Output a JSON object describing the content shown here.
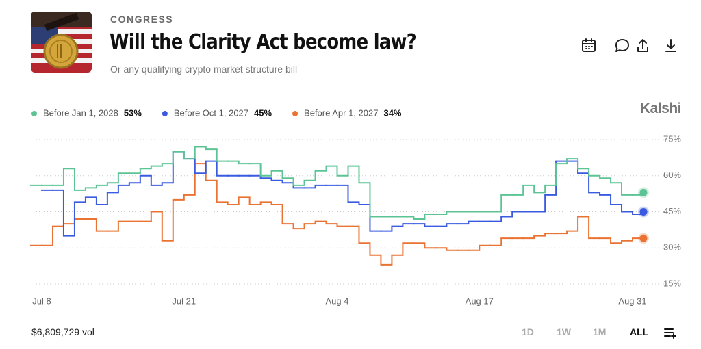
{
  "header": {
    "category": "CONGRESS",
    "title": "Will the Clarity Act become law?",
    "subtitle": "Or any qualifying crypto market structure bill",
    "brand": "Kalshi"
  },
  "chart_data": {
    "type": "step-line",
    "categories": [
      null,
      "Jul 8",
      null,
      null,
      null,
      null,
      null,
      null,
      null,
      null,
      null,
      null,
      null,
      null,
      "Jul 21",
      null,
      null,
      null,
      null,
      null,
      null,
      null,
      null,
      null,
      null,
      null,
      null,
      null,
      "Aug 4",
      null,
      null,
      null,
      null,
      null,
      null,
      null,
      null,
      null,
      null,
      null,
      null,
      "Aug 17",
      null,
      null,
      null,
      null,
      null,
      null,
      null,
      null,
      null,
      null,
      null,
      null,
      null,
      "Aug 31",
      null
    ],
    "series": [
      {
        "name": "Before Jan 1, 2028",
        "legend_value": "53%",
        "color": "#5cc494",
        "values": [
          56,
          56,
          56,
          63,
          54,
          55,
          56,
          57,
          61,
          61,
          63,
          64,
          65,
          70,
          67,
          72,
          71,
          66,
          66,
          65,
          65,
          60,
          62,
          59,
          56,
          58,
          62,
          64,
          60,
          64,
          57,
          43,
          43,
          43,
          43,
          42,
          44,
          44,
          45,
          45,
          45,
          45,
          45,
          52,
          52,
          56,
          53,
          56,
          65,
          67,
          63,
          60,
          59,
          57,
          52,
          52,
          53
        ]
      },
      {
        "name": "Before Oct 1, 2027",
        "legend_value": "45%",
        "color": "#3a5be0",
        "values": [
          null,
          54,
          54,
          35,
          49,
          51,
          48,
          53,
          56,
          57,
          60,
          56,
          57,
          70,
          67,
          61,
          66,
          60,
          60,
          60,
          60,
          59,
          58,
          57,
          55,
          55,
          56,
          56,
          56,
          49,
          48,
          37,
          37,
          39,
          40,
          40,
          39,
          39,
          40,
          40,
          41,
          41,
          41,
          43,
          45,
          45,
          45,
          52,
          66,
          66,
          61,
          53,
          52,
          48,
          45,
          44,
          45
        ]
      },
      {
        "name": "Before Apr 1, 2027",
        "legend_value": "34%",
        "color": "#ea7333",
        "values": [
          31,
          31,
          39,
          40,
          42,
          42,
          37,
          37,
          41,
          41,
          41,
          45,
          33,
          50,
          52,
          65,
          58,
          49,
          48,
          51,
          48,
          49,
          48,
          40,
          38,
          40,
          41,
          40,
          39,
          39,
          32,
          27,
          23,
          27,
          32,
          32,
          30,
          30,
          29,
          29,
          29,
          31,
          31,
          34,
          34,
          34,
          35,
          36,
          36,
          37,
          43,
          34,
          34,
          32,
          33,
          34,
          34
        ]
      }
    ],
    "ylim": [
      15,
      75
    ],
    "yticks": [
      {
        "value": 15,
        "label": "15%"
      },
      {
        "value": 30,
        "label": "30%"
      },
      {
        "value": 45,
        "label": "45%"
      },
      {
        "value": 60,
        "label": "60%"
      },
      {
        "value": 75,
        "label": "75%"
      }
    ],
    "grid": true
  },
  "footer": {
    "volume": "$6,809,729 vol",
    "ranges": [
      "1D",
      "1W",
      "1M",
      "ALL"
    ],
    "selected": "ALL"
  }
}
